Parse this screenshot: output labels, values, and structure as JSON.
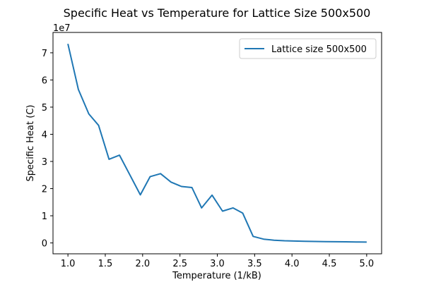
{
  "chart_data": {
    "type": "line",
    "title": "Specific Heat vs Temperature for Lattice Size 500x500",
    "xlabel": "Temperature (1/kB)",
    "ylabel": "Specific Heat (C)",
    "y_offset_label": "1e7",
    "xlim": [
      0.8,
      5.2
    ],
    "ylim": [
      -0.4,
      7.75
    ],
    "x_ticks": [
      1.0,
      1.5,
      2.0,
      2.5,
      3.0,
      3.5,
      4.0,
      4.5,
      5.0
    ],
    "x_tick_labels": [
      "1.0",
      "1.5",
      "2.0",
      "2.5",
      "3.0",
      "3.5",
      "4.0",
      "4.5",
      "5.0"
    ],
    "y_ticks": [
      0,
      1,
      2,
      3,
      4,
      5,
      6,
      7
    ],
    "y_tick_labels": [
      "0",
      "1",
      "2",
      "3",
      "4",
      "5",
      "6",
      "7"
    ],
    "grid": false,
    "legend_position": "top-right",
    "series": [
      {
        "name": "Lattice size 500x500",
        "color": "#1f77b4",
        "x": [
          1.0,
          1.14,
          1.28,
          1.41,
          1.55,
          1.69,
          1.83,
          1.97,
          2.1,
          2.24,
          2.38,
          2.52,
          2.66,
          2.79,
          2.93,
          3.07,
          3.21,
          3.34,
          3.48,
          3.62,
          3.76,
          3.9,
          4.03,
          4.17,
          4.31,
          4.45,
          4.59,
          4.72,
          4.86,
          5.0
        ],
        "y": [
          7.33,
          5.65,
          4.75,
          4.33,
          3.08,
          3.23,
          2.5,
          1.77,
          2.44,
          2.55,
          2.24,
          2.08,
          2.04,
          1.29,
          1.76,
          1.17,
          1.29,
          1.1,
          0.24,
          0.14,
          0.1,
          0.08,
          0.07,
          0.06,
          0.055,
          0.05,
          0.045,
          0.04,
          0.035,
          0.03
        ]
      }
    ]
  }
}
